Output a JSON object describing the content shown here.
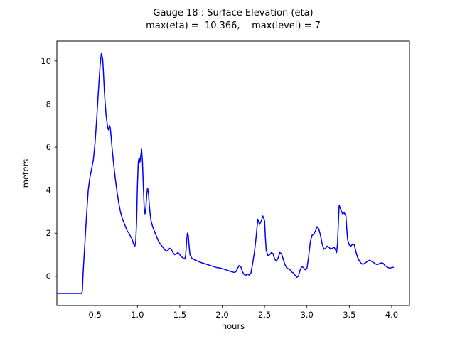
{
  "chart_data": {
    "type": "line",
    "title": "Gauge 18 : Surface Elevation (eta)",
    "subtitle": "max(eta) =  10.366,    max(level) = 7",
    "max_eta": 10.366,
    "max_level": 7,
    "xlabel": "hours",
    "ylabel": "meters",
    "xlim": [
      0.05,
      4.21
    ],
    "ylim": [
      -1.36,
      10.92
    ],
    "grid": false,
    "legend": null,
    "xticks": [
      0.5,
      1.0,
      1.5,
      2.0,
      2.5,
      3.0,
      3.5,
      4.0
    ],
    "xtick_labels": [
      "0.5",
      "1.0",
      "1.5",
      "2.0",
      "2.5",
      "3.0",
      "3.5",
      "4.0"
    ],
    "yticks": [
      0,
      2,
      4,
      6,
      8,
      10
    ],
    "ytick_labels": [
      "0",
      "2",
      "4",
      "6",
      "8",
      "10"
    ],
    "line_color": "#0000ff",
    "series": [
      {
        "name": "eta",
        "color": "#0000ff",
        "x": [
          0.05,
          0.1,
          0.15,
          0.2,
          0.25,
          0.3,
          0.34,
          0.35,
          0.36,
          0.38,
          0.4,
          0.42,
          0.44,
          0.46,
          0.48,
          0.5,
          0.52,
          0.54,
          0.56,
          0.575,
          0.59,
          0.6,
          0.61,
          0.62,
          0.63,
          0.64,
          0.65,
          0.66,
          0.67,
          0.68,
          0.69,
          0.7,
          0.72,
          0.74,
          0.76,
          0.78,
          0.8,
          0.82,
          0.84,
          0.86,
          0.88,
          0.9,
          0.92,
          0.94,
          0.95,
          0.96,
          0.97,
          0.98,
          0.99,
          1.0,
          1.01,
          1.02,
          1.03,
          1.04,
          1.05,
          1.06,
          1.07,
          1.08,
          1.09,
          1.1,
          1.11,
          1.12,
          1.13,
          1.14,
          1.15,
          1.16,
          1.18,
          1.2,
          1.22,
          1.24,
          1.26,
          1.28,
          1.3,
          1.32,
          1.34,
          1.36,
          1.38,
          1.4,
          1.42,
          1.44,
          1.46,
          1.48,
          1.5,
          1.52,
          1.54,
          1.56,
          1.57,
          1.58,
          1.59,
          1.6,
          1.61,
          1.62,
          1.64,
          1.66,
          1.68,
          1.7,
          1.74,
          1.78,
          1.82,
          1.86,
          1.9,
          1.94,
          1.98,
          2.02,
          2.06,
          2.1,
          2.14,
          2.16,
          2.18,
          2.2,
          2.22,
          2.24,
          2.26,
          2.28,
          2.3,
          2.32,
          2.34,
          2.36,
          2.38,
          2.4,
          2.42,
          2.44,
          2.46,
          2.48,
          2.5,
          2.51,
          2.52,
          2.54,
          2.56,
          2.58,
          2.6,
          2.62,
          2.64,
          2.66,
          2.68,
          2.7,
          2.72,
          2.74,
          2.76,
          2.78,
          2.8,
          2.82,
          2.84,
          2.86,
          2.88,
          2.9,
          2.92,
          2.94,
          2.96,
          2.98,
          3.0,
          3.02,
          3.04,
          3.06,
          3.08,
          3.1,
          3.12,
          3.14,
          3.16,
          3.18,
          3.2,
          3.22,
          3.24,
          3.26,
          3.28,
          3.3,
          3.32,
          3.34,
          3.35,
          3.36,
          3.38,
          3.4,
          3.42,
          3.44,
          3.46,
          3.47,
          3.48,
          3.5,
          3.52,
          3.54,
          3.56,
          3.58,
          3.6,
          3.62,
          3.64,
          3.66,
          3.68,
          3.7,
          3.72,
          3.74,
          3.76,
          3.78,
          3.8,
          3.82,
          3.84,
          3.86,
          3.88,
          3.9,
          3.92,
          3.94,
          3.96,
          3.98,
          4.0,
          4.02
        ],
        "y": [
          -0.8,
          -0.8,
          -0.8,
          -0.8,
          -0.8,
          -0.8,
          -0.8,
          -0.7,
          0.2,
          1.5,
          2.8,
          4.0,
          4.6,
          5.0,
          5.4,
          6.2,
          7.3,
          8.6,
          9.8,
          10.366,
          10.1,
          9.4,
          8.6,
          8.0,
          7.5,
          7.2,
          6.9,
          6.8,
          7.0,
          6.9,
          6.5,
          6.0,
          5.2,
          4.5,
          3.9,
          3.4,
          3.0,
          2.7,
          2.5,
          2.3,
          2.1,
          2.0,
          1.85,
          1.7,
          1.55,
          1.45,
          1.4,
          1.6,
          2.5,
          4.2,
          5.3,
          5.5,
          5.3,
          5.6,
          5.9,
          5.3,
          4.2,
          3.2,
          2.9,
          3.2,
          3.8,
          4.1,
          3.9,
          3.3,
          2.9,
          2.6,
          2.3,
          2.1,
          1.9,
          1.7,
          1.55,
          1.45,
          1.35,
          1.25,
          1.15,
          1.2,
          1.3,
          1.25,
          1.1,
          1.0,
          1.05,
          1.1,
          1.0,
          0.9,
          0.85,
          0.8,
          1.0,
          1.6,
          2.0,
          1.9,
          1.4,
          1.0,
          0.85,
          0.8,
          0.75,
          0.72,
          0.65,
          0.6,
          0.55,
          0.5,
          0.45,
          0.4,
          0.38,
          0.33,
          0.28,
          0.22,
          0.18,
          0.2,
          0.35,
          0.5,
          0.45,
          0.2,
          0.08,
          0.05,
          0.1,
          0.05,
          0.15,
          0.6,
          1.1,
          1.8,
          2.65,
          2.4,
          2.55,
          2.8,
          2.6,
          1.8,
          1.2,
          0.95,
          1.0,
          1.1,
          1.05,
          0.8,
          0.7,
          0.85,
          1.1,
          1.05,
          0.8,
          0.55,
          0.4,
          0.35,
          0.3,
          0.2,
          0.15,
          0.05,
          -0.05,
          0.0,
          0.3,
          0.45,
          0.4,
          0.3,
          0.35,
          0.9,
          1.6,
          1.9,
          1.95,
          2.1,
          2.3,
          2.2,
          1.9,
          1.5,
          1.25,
          1.3,
          1.4,
          1.35,
          1.25,
          1.3,
          1.35,
          1.2,
          1.1,
          1.5,
          3.3,
          3.1,
          2.9,
          2.95,
          2.8,
          2.2,
          1.7,
          1.45,
          1.4,
          1.5,
          1.45,
          1.1,
          0.85,
          0.7,
          0.6,
          0.55,
          0.6,
          0.65,
          0.7,
          0.75,
          0.7,
          0.65,
          0.6,
          0.55,
          0.55,
          0.6,
          0.62,
          0.6,
          0.5,
          0.45,
          0.4,
          0.38,
          0.4,
          0.42
        ]
      }
    ]
  }
}
